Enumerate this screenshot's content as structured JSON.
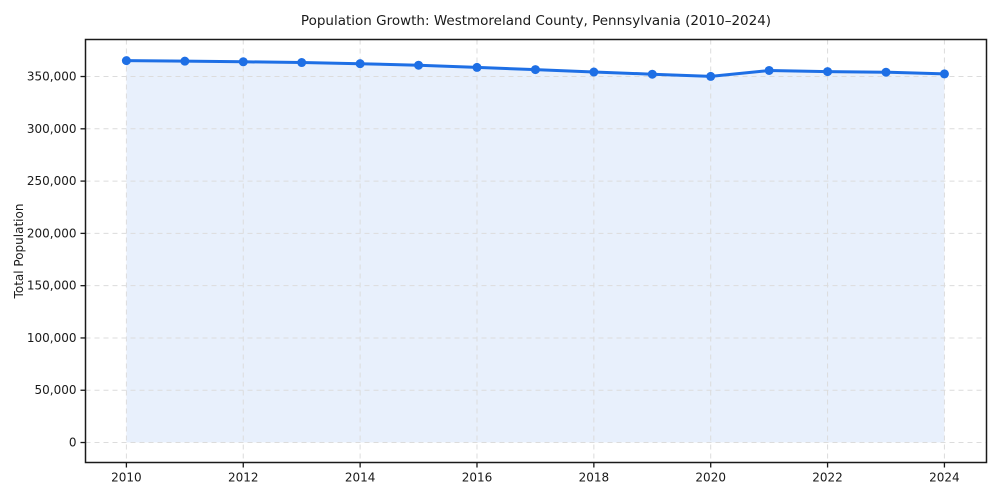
{
  "chart": {
    "title": "Population Growth: Westmoreland County, Pennsylvania (2010–2024)",
    "y_axis_label": "Total Population"
  },
  "chart_data": {
    "type": "line",
    "subtype": "area-filled-line-with-markers",
    "title": "Population Growth: Westmoreland County, Pennsylvania (2010–2024)",
    "xlabel": "",
    "ylabel": "Total Population",
    "x": [
      2010,
      2011,
      2012,
      2013,
      2014,
      2015,
      2016,
      2017,
      2018,
      2019,
      2020,
      2021,
      2022,
      2023,
      2024
    ],
    "series": [
      {
        "name": "Total Population",
        "values": [
          365200,
          364700,
          364100,
          363400,
          362300,
          360800,
          358700,
          356600,
          354300,
          352200,
          350100,
          355800,
          354700,
          354100,
          352500
        ]
      }
    ],
    "xticks": [
      2010,
      2012,
      2014,
      2016,
      2018,
      2020,
      2022,
      2024
    ],
    "yticks": [
      0,
      50000,
      100000,
      150000,
      200000,
      250000,
      300000,
      350000
    ],
    "xlim": [
      2009.3,
      2024.72
    ],
    "ylim": [
      -19100,
      385400
    ],
    "grid": true,
    "grid_style": "dashed",
    "legend": "none",
    "marker": "circle",
    "colors": {
      "line": "#1e6fe5",
      "marker": "#1e6fe5",
      "area_fill": "#e8f0fc",
      "grid": "#dcdcdc",
      "spine": "#1a1a1a",
      "text": "#1a1a1a",
      "background": "#ffffff"
    }
  }
}
